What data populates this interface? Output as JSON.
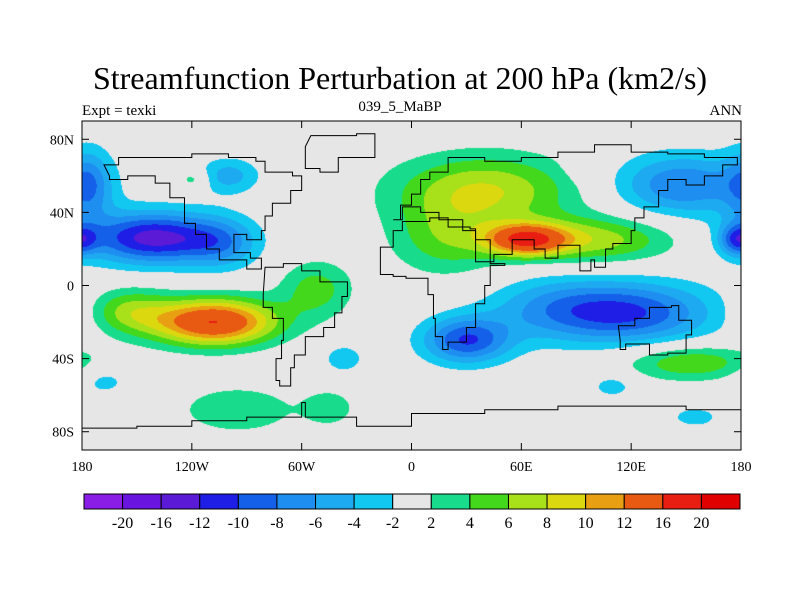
{
  "chart_data": {
    "type": "contour-map",
    "title": "Streamfunction Perturbation at 200 hPa (km2/s)",
    "subtitle_left": "Expt = texki",
    "subtitle_center": "039_5_MaBP",
    "subtitle_right": "ANN",
    "x_range": [
      -180,
      180
    ],
    "y_range": [
      -90,
      90
    ],
    "x_ticks": [
      {
        "value": -180,
        "label": "180"
      },
      {
        "value": -120,
        "label": "120W"
      },
      {
        "value": -60,
        "label": "60W"
      },
      {
        "value": 0,
        "label": "0"
      },
      {
        "value": 60,
        "label": "60E"
      },
      {
        "value": 120,
        "label": "120E"
      },
      {
        "value": 180,
        "label": "180"
      }
    ],
    "y_ticks": [
      {
        "value": 80,
        "label": "80N"
      },
      {
        "value": 40,
        "label": "40N"
      },
      {
        "value": 0,
        "label": "0"
      },
      {
        "value": -40,
        "label": "40S"
      },
      {
        "value": -80,
        "label": "80S"
      }
    ],
    "colorbar": {
      "labels": [
        "-20",
        "-16",
        "-12",
        "-10",
        "-8",
        "-6",
        "-4",
        "-2",
        "2",
        "4",
        "6",
        "8",
        "10",
        "12",
        "16",
        "20"
      ],
      "colors": [
        "#8a1ee6",
        "#6a14e0",
        "#5a1ad6",
        "#1e1ee6",
        "#1560e8",
        "#1e8ef0",
        "#1eaaf0",
        "#12c8f0",
        "#e6e6e6",
        "#18dc8c",
        "#44d81c",
        "#a8e01a",
        "#dcd810",
        "#e8a012",
        "#e85a12",
        "#e81e12",
        "#e00000"
      ]
    },
    "field_centers": [
      {
        "lon": -141,
        "lat": 26,
        "amp": -13,
        "sx": 26,
        "sy": 10
      },
      {
        "lon": -103,
        "lat": 23,
        "amp": -5,
        "sx": 14,
        "sy": 10
      },
      {
        "lon": -108,
        "lat": -20,
        "amp": 16,
        "sx": 24,
        "sy": 9
      },
      {
        "lon": -155,
        "lat": -14,
        "amp": 6,
        "sx": 16,
        "sy": 9
      },
      {
        "lon": -176,
        "lat": 55,
        "amp": -6,
        "sx": 9,
        "sy": 14
      },
      {
        "lon": -100,
        "lat": 60,
        "amp": -5,
        "sx": 12,
        "sy": 7
      },
      {
        "lon": -168,
        "lat": -52,
        "amp": -3,
        "sx": 10,
        "sy": 6
      },
      {
        "lon": -95,
        "lat": -68,
        "amp": 4,
        "sx": 22,
        "sy": 9
      },
      {
        "lon": -45,
        "lat": -67,
        "amp": 3.5,
        "sx": 10,
        "sy": 7
      },
      {
        "lon": -37,
        "lat": -40,
        "amp": -4,
        "sx": 7,
        "sy": 5
      },
      {
        "lon": -52,
        "lat": -2,
        "amp": 5,
        "sx": 14,
        "sy": 11
      },
      {
        "lon": -119,
        "lat": 58,
        "amp": 3.5,
        "sx": 6,
        "sy": 4
      },
      {
        "lon": 40,
        "lat": 52,
        "amp": 8,
        "sx": 35,
        "sy": 14
      },
      {
        "lon": 63,
        "lat": 25,
        "amp": 14,
        "sx": 15,
        "sy": 6
      },
      {
        "lon": 100,
        "lat": 25,
        "amp": 7,
        "sx": 30,
        "sy": 9
      },
      {
        "lon": 20,
        "lat": 25,
        "amp": 5,
        "sx": 22,
        "sy": 14
      },
      {
        "lon": 148,
        "lat": 55,
        "amp": -8,
        "sx": 26,
        "sy": 12
      },
      {
        "lon": 95,
        "lat": 67,
        "amp": -2.5,
        "sx": 7,
        "sy": 6
      },
      {
        "lon": 178,
        "lat": 25,
        "amp": -8,
        "sx": 7,
        "sy": 6
      },
      {
        "lon": 30,
        "lat": -30,
        "amp": -10,
        "sx": 17,
        "sy": 9
      },
      {
        "lon": 118,
        "lat": -15,
        "amp": -10,
        "sx": 33,
        "sy": 12
      },
      {
        "lon": 75,
        "lat": -12,
        "amp": -4,
        "sx": 26,
        "sy": 12
      },
      {
        "lon": 152,
        "lat": -42,
        "amp": 6,
        "sx": 25,
        "sy": 7
      },
      {
        "lon": 110,
        "lat": -55,
        "amp": -3,
        "sx": 9,
        "sy": 5
      },
      {
        "lon": 155,
        "lat": -72,
        "amp": -2.5,
        "sx": 14,
        "sy": 6
      }
    ]
  }
}
